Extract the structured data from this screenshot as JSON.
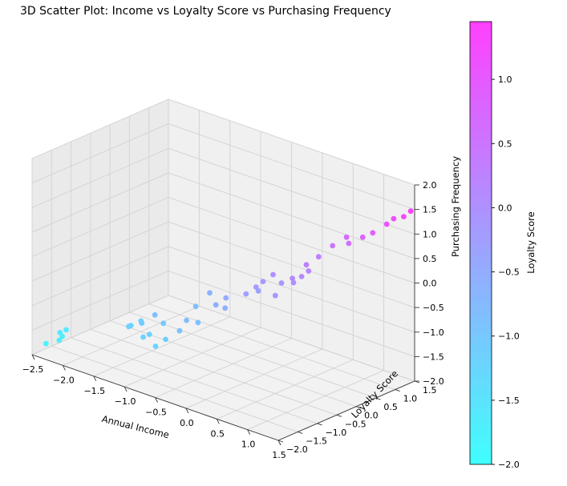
{
  "chart_data": {
    "type": "scatter",
    "title": "3D Scatter Plot: Income vs Loyalty Score vs Purchasing Frequency",
    "xlabel": "Annual Income",
    "ylabel": "Loyalty Score",
    "zlabel": "Purchasing Frequency",
    "xlim": [
      -2.5,
      1.5
    ],
    "ylim": [
      -2.0,
      1.5
    ],
    "zlim": [
      -2.0,
      2.0
    ],
    "x_ticks": [
      "−2.5",
      "−2.0",
      "−1.5",
      "−1.0",
      "−0.5",
      "0.0",
      "0.5",
      "1.0",
      "1.5"
    ],
    "y_ticks": [
      "−2.0",
      "−1.5",
      "−1.0",
      "−0.5",
      "0.0",
      "0.5",
      "1.0",
      "1.5"
    ],
    "z_ticks": [
      "−2.0",
      "−1.5",
      "−1.0",
      "−0.5",
      "0.0",
      "0.5",
      "1.0",
      "1.5",
      "2.0"
    ],
    "grid": true,
    "colorbar": {
      "label": "Loyalty Score",
      "colormap": "cool",
      "range": [
        -2.0,
        1.45
      ],
      "ticks": [
        "−2.0",
        "−1.5",
        "−1.0",
        "−0.5",
        "0.0",
        "0.5",
        "1.0"
      ],
      "tick_values": [
        -2.0,
        -1.5,
        -1.0,
        -0.5,
        0.0,
        0.5,
        1.0
      ],
      "color_low": "#40ffff",
      "color_high": "#ff40ff"
    },
    "points": [
      {
        "x": -2.4,
        "y": -1.8,
        "z": -1.8
      },
      {
        "x": -2.3,
        "y": -1.6,
        "z": -1.6
      },
      {
        "x": -2.25,
        "y": -1.7,
        "z": -1.7
      },
      {
        "x": -2.2,
        "y": -1.6,
        "z": -1.5
      },
      {
        "x": -2.2,
        "y": -1.7,
        "z": -1.6
      },
      {
        "x": -1.5,
        "y": -1.1,
        "z": -1.3
      },
      {
        "x": -1.4,
        "y": -1.2,
        "z": -1.2
      },
      {
        "x": -1.35,
        "y": -1.0,
        "z": -1.2
      },
      {
        "x": -1.3,
        "y": -1.1,
        "z": -1.1
      },
      {
        "x": -1.2,
        "y": -1.2,
        "z": -1.35
      },
      {
        "x": -1.2,
        "y": -0.9,
        "z": -1.0
      },
      {
        "x": -1.1,
        "y": -1.2,
        "z": -1.25
      },
      {
        "x": -1.0,
        "y": -1.0,
        "z": -1.05
      },
      {
        "x": -1.0,
        "y": -1.2,
        "z": -1.45
      },
      {
        "x": -0.9,
        "y": -1.1,
        "z": -1.3
      },
      {
        "x": -0.8,
        "y": -0.9,
        "z": -1.15
      },
      {
        "x": -0.75,
        "y": -0.8,
        "z": -0.95
      },
      {
        "x": -0.6,
        "y": -0.8,
        "z": -0.6
      },
      {
        "x": -0.5,
        "y": -0.9,
        "z": -0.85
      },
      {
        "x": -0.5,
        "y": -0.6,
        "z": -0.35
      },
      {
        "x": -0.4,
        "y": -0.6,
        "z": -0.55
      },
      {
        "x": -0.3,
        "y": -0.5,
        "z": -0.4
      },
      {
        "x": -0.25,
        "y": -0.6,
        "z": -0.55
      },
      {
        "x": -0.1,
        "y": -0.3,
        "z": -0.3
      },
      {
        "x": 0.0,
        "y": -0.2,
        "z": -0.15
      },
      {
        "x": 0.1,
        "y": -0.3,
        "z": -0.15
      },
      {
        "x": 0.05,
        "y": -0.1,
        "z": -0.05
      },
      {
        "x": 0.15,
        "y": 0.0,
        "z": 0.1
      },
      {
        "x": 0.25,
        "y": -0.1,
        "z": -0.25
      },
      {
        "x": 0.35,
        "y": -0.1,
        "z": 0.05
      },
      {
        "x": 0.4,
        "y": 0.1,
        "z": 0.1
      },
      {
        "x": 0.45,
        "y": 0.05,
        "z": 0.05
      },
      {
        "x": 0.5,
        "y": 0.3,
        "z": 0.35
      },
      {
        "x": 0.55,
        "y": 0.1,
        "z": 0.2
      },
      {
        "x": 0.6,
        "y": 0.2,
        "z": 0.3
      },
      {
        "x": 0.7,
        "y": 0.3,
        "z": 0.6
      },
      {
        "x": 0.8,
        "y": 0.5,
        "z": 0.8
      },
      {
        "x": 0.9,
        "y": 0.7,
        "z": 0.95
      },
      {
        "x": 1.0,
        "y": 0.6,
        "z": 0.9
      },
      {
        "x": 1.1,
        "y": 0.8,
        "z": 1.0
      },
      {
        "x": 1.2,
        "y": 0.9,
        "z": 1.1
      },
      {
        "x": 1.3,
        "y": 1.1,
        "z": 1.25
      },
      {
        "x": 1.35,
        "y": 1.2,
        "z": 1.35
      },
      {
        "x": 1.45,
        "y": 1.3,
        "z": 1.4
      },
      {
        "x": 1.5,
        "y": 1.4,
        "z": 1.5
      }
    ]
  }
}
